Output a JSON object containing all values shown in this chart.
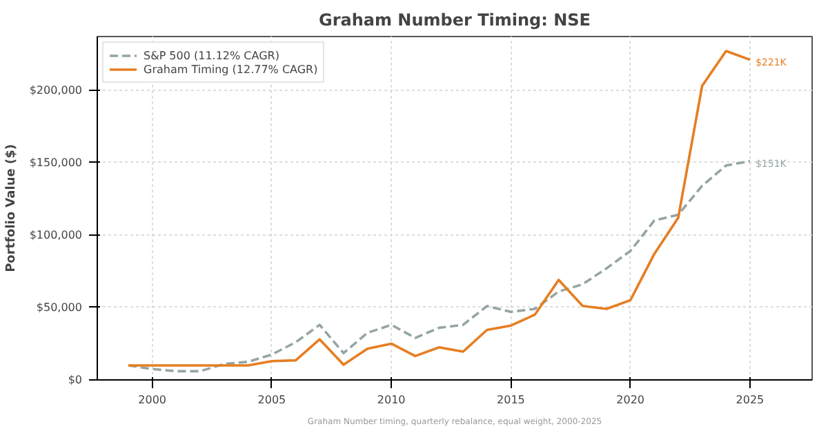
{
  "chart_data": {
    "type": "line",
    "title": "Graham Number Timing: NSE",
    "ylabel": "Portfolio Value ($)",
    "x": [
      1999,
      2000,
      2001,
      2002,
      2003,
      2004,
      2005,
      2006,
      2007,
      2008,
      2009,
      2010,
      2011,
      2012,
      2013,
      2014,
      2015,
      2016,
      2017,
      2018,
      2019,
      2020,
      2021,
      2022,
      2023,
      2024,
      2025
    ],
    "series": [
      {
        "name": "S&P 500 (11.12% CAGR)",
        "color": "#95a5a6",
        "line_style": "dashed",
        "values": [
          10000,
          7500,
          6000,
          6000,
          11000,
          12500,
          17500,
          26000,
          38000,
          18500,
          32500,
          38000,
          29000,
          36000,
          38000,
          51000,
          47000,
          49000,
          61000,
          66000,
          77000,
          89000,
          110000,
          114000,
          134000,
          148000,
          151000
        ]
      },
      {
        "name": "Graham Timing (12.77% CAGR)",
        "color": "#e67e22",
        "line_style": "solid",
        "values": [
          10000,
          10000,
          10000,
          10000,
          10000,
          10000,
          13000,
          13500,
          28000,
          10500,
          21500,
          25000,
          16500,
          22500,
          19500,
          34500,
          37500,
          45000,
          69000,
          51000,
          49000,
          55000,
          87000,
          112000,
          203000,
          227000,
          221000
        ]
      }
    ],
    "xlim": [
      1997.7,
      2027.6
    ],
    "ylim": [
      0,
      237000
    ],
    "xticks": [
      2000,
      2005,
      2010,
      2015,
      2020,
      2025
    ],
    "yticks": [
      {
        "value": 0,
        "label": "$0"
      },
      {
        "value": 50000,
        "label": "$50,000"
      },
      {
        "value": 100000,
        "label": "$100,000"
      },
      {
        "value": 150000,
        "label": "$150,000"
      },
      {
        "value": 200000,
        "label": "$200,000"
      }
    ],
    "grid": true,
    "legend": "top left",
    "annotations": [
      {
        "text": "$221K",
        "x": 2025,
        "y": 221000
      },
      {
        "text": "$151K",
        "x": 2025,
        "y": 151000
      },
      "Graham Number timing, quarterly rebalance, equal weight, 2000-2025"
    ]
  }
}
